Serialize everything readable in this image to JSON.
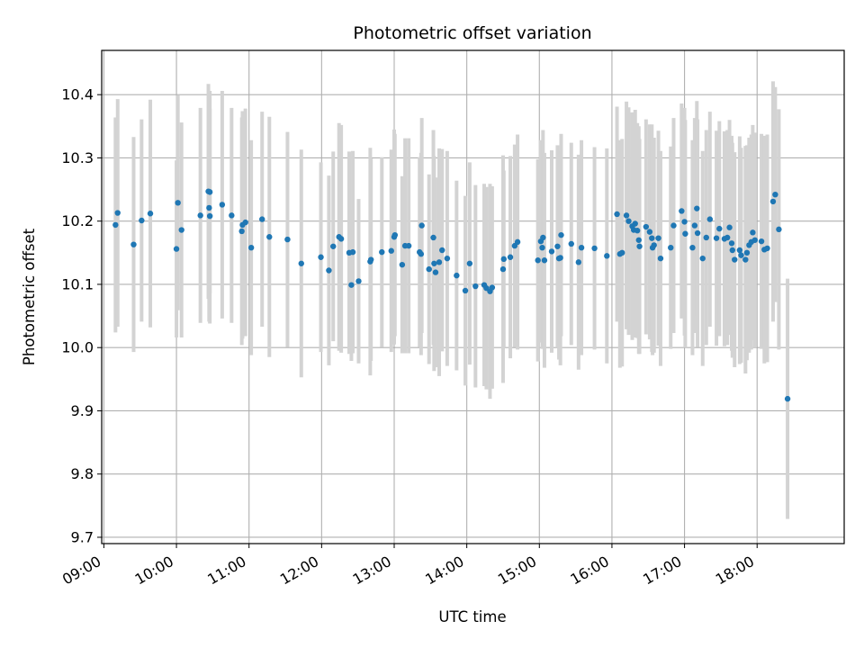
{
  "chart_data": {
    "type": "scatter",
    "title": "Photometric offset variation",
    "xlabel": "UTC time",
    "ylabel": "Photometric offset",
    "x_unit": "hours (UTC)",
    "xlim": [
      8.97,
      19.2
    ],
    "ylim": [
      9.69,
      10.47
    ],
    "x_ticks": [
      9,
      10,
      11,
      12,
      13,
      14,
      15,
      16,
      17,
      18
    ],
    "x_tick_labels": [
      "09:00",
      "10:00",
      "11:00",
      "12:00",
      "13:00",
      "14:00",
      "15:00",
      "16:00",
      "17:00",
      "18:00"
    ],
    "y_ticks": [
      9.7,
      9.8,
      9.9,
      10.0,
      10.1,
      10.2,
      10.3,
      10.4
    ],
    "y_tick_labels": [
      "9.7",
      "9.8",
      "9.9",
      "10.0",
      "10.1",
      "10.2",
      "10.3",
      "10.4"
    ],
    "grid": true,
    "point_color": "#1f77b4",
    "errorbar_color": "#d3d3d3",
    "series": [
      {
        "name": "offset",
        "points": [
          [
            9.16,
            10.194,
            0.17
          ],
          [
            9.19,
            10.213,
            0.18
          ],
          [
            9.41,
            10.163,
            0.17
          ],
          [
            9.52,
            10.201,
            0.16
          ],
          [
            9.64,
            10.212,
            0.18
          ],
          [
            10.0,
            10.156,
            0.14
          ],
          [
            10.02,
            10.229,
            0.17
          ],
          [
            10.07,
            10.186,
            0.17
          ],
          [
            10.33,
            10.209,
            0.17
          ],
          [
            10.44,
            10.247,
            0.17
          ],
          [
            10.45,
            10.221,
            0.18
          ],
          [
            10.46,
            10.246,
            0.16
          ],
          [
            10.46,
            10.208,
            0.17
          ],
          [
            10.63,
            10.226,
            0.18
          ],
          [
            10.76,
            10.209,
            0.17
          ],
          [
            10.9,
            10.184,
            0.18
          ],
          [
            10.91,
            10.194,
            0.18
          ],
          [
            10.95,
            10.198,
            0.18
          ],
          [
            11.03,
            10.158,
            0.17
          ],
          [
            11.18,
            10.203,
            0.17
          ],
          [
            11.28,
            10.175,
            0.19
          ],
          [
            11.53,
            10.171,
            0.17
          ],
          [
            11.72,
            10.133,
            0.18
          ],
          [
            11.99,
            10.143,
            0.15
          ],
          [
            12.1,
            10.122,
            0.15
          ],
          [
            12.16,
            10.16,
            0.15
          ],
          [
            12.24,
            10.175,
            0.18
          ],
          [
            12.27,
            10.172,
            0.18
          ],
          [
            12.38,
            10.15,
            0.16
          ],
          [
            12.41,
            10.099,
            0.12
          ],
          [
            12.43,
            10.151,
            0.16
          ],
          [
            12.51,
            10.105,
            0.13
          ],
          [
            12.67,
            10.136,
            0.18
          ],
          [
            12.68,
            10.139,
            0.16
          ],
          [
            12.83,
            10.151,
            0.15
          ],
          [
            12.96,
            10.153,
            0.16
          ],
          [
            13.0,
            10.175,
            0.17
          ],
          [
            13.01,
            10.178,
            0.16
          ],
          [
            13.11,
            10.131,
            0.14
          ],
          [
            13.15,
            10.161,
            0.17
          ],
          [
            13.2,
            10.161,
            0.17
          ],
          [
            13.35,
            10.151,
            0.15
          ],
          [
            13.37,
            10.148,
            0.16
          ],
          [
            13.38,
            10.193,
            0.17
          ],
          [
            13.48,
            10.124,
            0.15
          ],
          [
            13.54,
            10.174,
            0.17
          ],
          [
            13.55,
            10.133,
            0.17
          ],
          [
            13.57,
            10.119,
            0.15
          ],
          [
            13.62,
            10.135,
            0.18
          ],
          [
            13.66,
            10.154,
            0.16
          ],
          [
            13.73,
            10.141,
            0.17
          ],
          [
            13.86,
            10.114,
            0.15
          ],
          [
            13.98,
            10.09,
            0.15
          ],
          [
            14.04,
            10.133,
            0.16
          ],
          [
            14.12,
            10.097,
            0.16
          ],
          [
            14.24,
            10.099,
            0.16
          ],
          [
            14.27,
            10.094,
            0.16
          ],
          [
            14.32,
            10.089,
            0.17
          ],
          [
            14.35,
            10.095,
            0.16
          ],
          [
            14.5,
            10.124,
            0.18
          ],
          [
            14.51,
            10.14,
            0.14
          ],
          [
            14.6,
            10.143,
            0.16
          ],
          [
            14.66,
            10.161,
            0.16
          ],
          [
            14.7,
            10.167,
            0.17
          ],
          [
            14.98,
            10.138,
            0.16
          ],
          [
            15.02,
            10.168,
            0.16
          ],
          [
            15.04,
            10.158,
            0.16
          ],
          [
            15.05,
            10.174,
            0.17
          ],
          [
            15.07,
            10.138,
            0.17
          ],
          [
            15.17,
            10.152,
            0.16
          ],
          [
            15.25,
            10.16,
            0.16
          ],
          [
            15.27,
            10.141,
            0.16
          ],
          [
            15.29,
            10.142,
            0.17
          ],
          [
            15.3,
            10.178,
            0.16
          ],
          [
            15.44,
            10.164,
            0.16
          ],
          [
            15.54,
            10.135,
            0.17
          ],
          [
            15.58,
            10.158,
            0.17
          ],
          [
            15.76,
            10.157,
            0.16
          ],
          [
            15.93,
            10.145,
            0.17
          ],
          [
            16.07,
            10.211,
            0.17
          ],
          [
            16.11,
            10.148,
            0.18
          ],
          [
            16.14,
            10.15,
            0.18
          ],
          [
            16.2,
            10.209,
            0.18
          ],
          [
            16.23,
            10.2,
            0.18
          ],
          [
            16.28,
            10.192,
            0.18
          ],
          [
            16.3,
            10.186,
            0.17
          ],
          [
            16.32,
            10.196,
            0.18
          ],
          [
            16.35,
            10.185,
            0.17
          ],
          [
            16.37,
            10.17,
            0.18
          ],
          [
            16.38,
            10.16,
            0.17
          ],
          [
            16.47,
            10.191,
            0.17
          ],
          [
            16.52,
            10.183,
            0.17
          ],
          [
            16.55,
            10.173,
            0.18
          ],
          [
            16.56,
            10.158,
            0.17
          ],
          [
            16.58,
            10.162,
            0.17
          ],
          [
            16.64,
            10.173,
            0.17
          ],
          [
            16.67,
            10.141,
            0.17
          ],
          [
            16.81,
            10.158,
            0.16
          ],
          [
            16.85,
            10.193,
            0.17
          ],
          [
            16.96,
            10.216,
            0.17
          ],
          [
            17.0,
            10.199,
            0.18
          ],
          [
            17.01,
            10.18,
            0.18
          ],
          [
            17.11,
            10.158,
            0.17
          ],
          [
            17.14,
            10.193,
            0.17
          ],
          [
            17.17,
            10.22,
            0.17
          ],
          [
            17.18,
            10.181,
            0.18
          ],
          [
            17.25,
            10.141,
            0.17
          ],
          [
            17.3,
            10.174,
            0.17
          ],
          [
            17.35,
            10.203,
            0.17
          ],
          [
            17.44,
            10.173,
            0.17
          ],
          [
            17.48,
            10.188,
            0.17
          ],
          [
            17.55,
            10.172,
            0.17
          ],
          [
            17.59,
            10.174,
            0.17
          ],
          [
            17.62,
            10.19,
            0.17
          ],
          [
            17.65,
            10.165,
            0.17
          ],
          [
            17.66,
            10.154,
            0.17
          ],
          [
            17.69,
            10.139,
            0.17
          ],
          [
            17.76,
            10.154,
            0.18
          ],
          [
            17.78,
            10.146,
            0.17
          ],
          [
            17.84,
            10.139,
            0.18
          ],
          [
            17.86,
            10.15,
            0.17
          ],
          [
            17.89,
            10.162,
            0.17
          ],
          [
            17.92,
            10.167,
            0.17
          ],
          [
            17.94,
            10.182,
            0.17
          ],
          [
            17.97,
            10.17,
            0.17
          ],
          [
            18.06,
            10.168,
            0.17
          ],
          [
            18.1,
            10.155,
            0.18
          ],
          [
            18.14,
            10.157,
            0.18
          ],
          [
            18.22,
            10.231,
            0.19
          ],
          [
            18.25,
            10.242,
            0.17
          ],
          [
            18.3,
            10.187,
            0.19
          ],
          [
            18.42,
            9.919,
            0.19
          ]
        ]
      }
    ]
  }
}
